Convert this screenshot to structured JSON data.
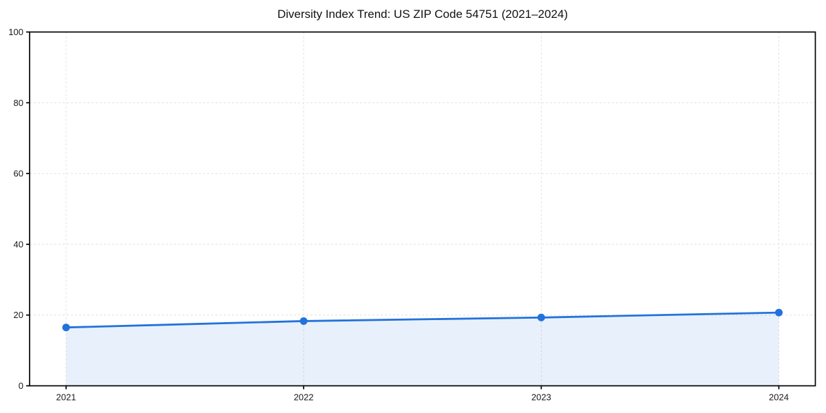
{
  "title": "Diversity Index Trend: US ZIP Code 54751 (2021–2024)",
  "chart_data": {
    "type": "area",
    "title": "Diversity Index Trend: US ZIP Code 54751 (2021–2024)",
    "categories": [
      "2021",
      "2022",
      "2023",
      "2024"
    ],
    "series": [
      {
        "name": "Diversity Index",
        "values": [
          16.5,
          18.3,
          19.3,
          20.7
        ]
      }
    ],
    "xlabel": "",
    "ylabel": "",
    "ylim": [
      0,
      100
    ],
    "yticks": [
      0,
      20,
      40,
      60,
      80,
      100
    ],
    "grid": true,
    "grid_style": "dashed",
    "legend_position": "none",
    "colors": {
      "line": "#2272DC",
      "marker": "#2272DC",
      "fill": "rgba(34,114,220,0.10)",
      "grid": "#e0e0e0",
      "spine": "#000000",
      "tick_text": "#191919"
    }
  }
}
